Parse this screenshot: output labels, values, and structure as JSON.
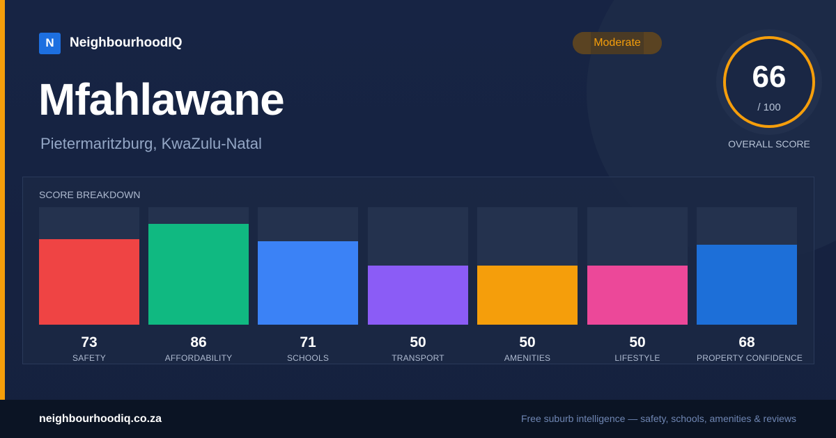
{
  "brand": {
    "logo_letter": "N",
    "name": "NeighbourhoodIQ"
  },
  "suburb": {
    "name": "Mfahlawane",
    "location": "Pietermaritzburg, KwaZulu-Natal"
  },
  "rating_badge": "Moderate",
  "overall": {
    "score": "66",
    "max": "/ 100",
    "caption": "OVERALL SCORE",
    "ring_color": "#f59e0b"
  },
  "breakdown": {
    "title": "SCORE BREAKDOWN",
    "max_value": 100,
    "items": [
      {
        "value": "73",
        "label": "SAFETY",
        "color": "#ef4444"
      },
      {
        "value": "86",
        "label": "AFFORDABILITY",
        "color": "#10b981"
      },
      {
        "value": "71",
        "label": "SCHOOLS",
        "color": "#3b82f6"
      },
      {
        "value": "50",
        "label": "TRANSPORT",
        "color": "#8b5cf6"
      },
      {
        "value": "50",
        "label": "AMENITIES",
        "color": "#f59e0b"
      },
      {
        "value": "50",
        "label": "LIFESTYLE",
        "color": "#ec4899"
      },
      {
        "value": "68",
        "label": "PROPERTY CONFIDENCE",
        "color": "#1d6fd8"
      }
    ]
  },
  "footer": {
    "url": "neighbourhoodiq.co.za",
    "tagline": "Free suburb intelligence — safety, schools, amenities & reviews"
  },
  "colors": {
    "accent": "#f59e0b",
    "brand_blue": "#1d6fe0",
    "background": "#14213d"
  }
}
